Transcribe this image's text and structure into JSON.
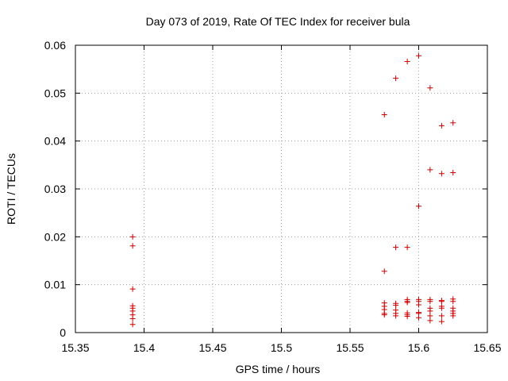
{
  "chart_data": {
    "type": "scatter",
    "title": "Day 073 of 2019, Rate Of TEC Index for receiver bula",
    "xlabel": "GPS time / hours",
    "ylabel": "ROTI / TECUs",
    "xlim": [
      15.35,
      15.65
    ],
    "ylim": [
      0,
      0.06
    ],
    "x_ticks": [
      15.35,
      15.4,
      15.45,
      15.5,
      15.55,
      15.6,
      15.65
    ],
    "x_tick_labels": [
      "15.35",
      "15.4",
      "15.45",
      "15.5",
      "15.55",
      "15.6",
      "15.65"
    ],
    "y_ticks": [
      0,
      0.01,
      0.02,
      0.03,
      0.04,
      0.05,
      0.06
    ],
    "y_tick_labels": [
      "0",
      "0.01",
      "0.02",
      "0.03",
      "0.04",
      "0.05",
      "0.06"
    ],
    "grid": true,
    "marker": "+",
    "marker_color": "#cc0000",
    "series": [
      {
        "name": "ROTI",
        "points": [
          [
            15.3917,
            0.02
          ],
          [
            15.3917,
            0.0181
          ],
          [
            15.3917,
            0.0091
          ],
          [
            15.3917,
            0.0056
          ],
          [
            15.3917,
            0.0051
          ],
          [
            15.3917,
            0.0045
          ],
          [
            15.3917,
            0.0037
          ],
          [
            15.3917,
            0.0029
          ],
          [
            15.3917,
            0.0017
          ],
          [
            15.575,
            0.0455
          ],
          [
            15.575,
            0.0128
          ],
          [
            15.575,
            0.0062
          ],
          [
            15.575,
            0.0055
          ],
          [
            15.575,
            0.0048
          ],
          [
            15.575,
            0.004
          ],
          [
            15.575,
            0.0037
          ],
          [
            15.5833,
            0.0531
          ],
          [
            15.5833,
            0.0178
          ],
          [
            15.5833,
            0.0061
          ],
          [
            15.5833,
            0.0057
          ],
          [
            15.5833,
            0.0047
          ],
          [
            15.5833,
            0.004
          ],
          [
            15.5833,
            0.0035
          ],
          [
            15.5917,
            0.0566
          ],
          [
            15.5917,
            0.0178
          ],
          [
            15.5917,
            0.0069
          ],
          [
            15.5917,
            0.0065
          ],
          [
            15.5917,
            0.0063
          ],
          [
            15.5917,
            0.0041
          ],
          [
            15.5917,
            0.0037
          ],
          [
            15.5917,
            0.0034
          ],
          [
            15.6,
            0.0578
          ],
          [
            15.6,
            0.0264
          ],
          [
            15.6,
            0.0069
          ],
          [
            15.6,
            0.0065
          ],
          [
            15.6,
            0.0058
          ],
          [
            15.6,
            0.0042
          ],
          [
            15.6,
            0.004
          ],
          [
            15.6,
            0.0031
          ],
          [
            15.6083,
            0.0511
          ],
          [
            15.6083,
            0.034
          ],
          [
            15.6083,
            0.0069
          ],
          [
            15.6083,
            0.0065
          ],
          [
            15.6083,
            0.0051
          ],
          [
            15.6083,
            0.0045
          ],
          [
            15.6083,
            0.0035
          ],
          [
            15.6083,
            0.0025
          ],
          [
            15.6167,
            0.0432
          ],
          [
            15.6167,
            0.0332
          ],
          [
            15.6167,
            0.0067
          ],
          [
            15.6167,
            0.0065
          ],
          [
            15.6167,
            0.0055
          ],
          [
            15.6167,
            0.0051
          ],
          [
            15.6167,
            0.0035
          ],
          [
            15.6167,
            0.0023
          ],
          [
            15.625,
            0.0438
          ],
          [
            15.625,
            0.0334
          ],
          [
            15.625,
            0.007
          ],
          [
            15.625,
            0.0065
          ],
          [
            15.625,
            0.0051
          ],
          [
            15.625,
            0.0045
          ],
          [
            15.625,
            0.004
          ],
          [
            15.625,
            0.0035
          ]
        ]
      }
    ]
  }
}
